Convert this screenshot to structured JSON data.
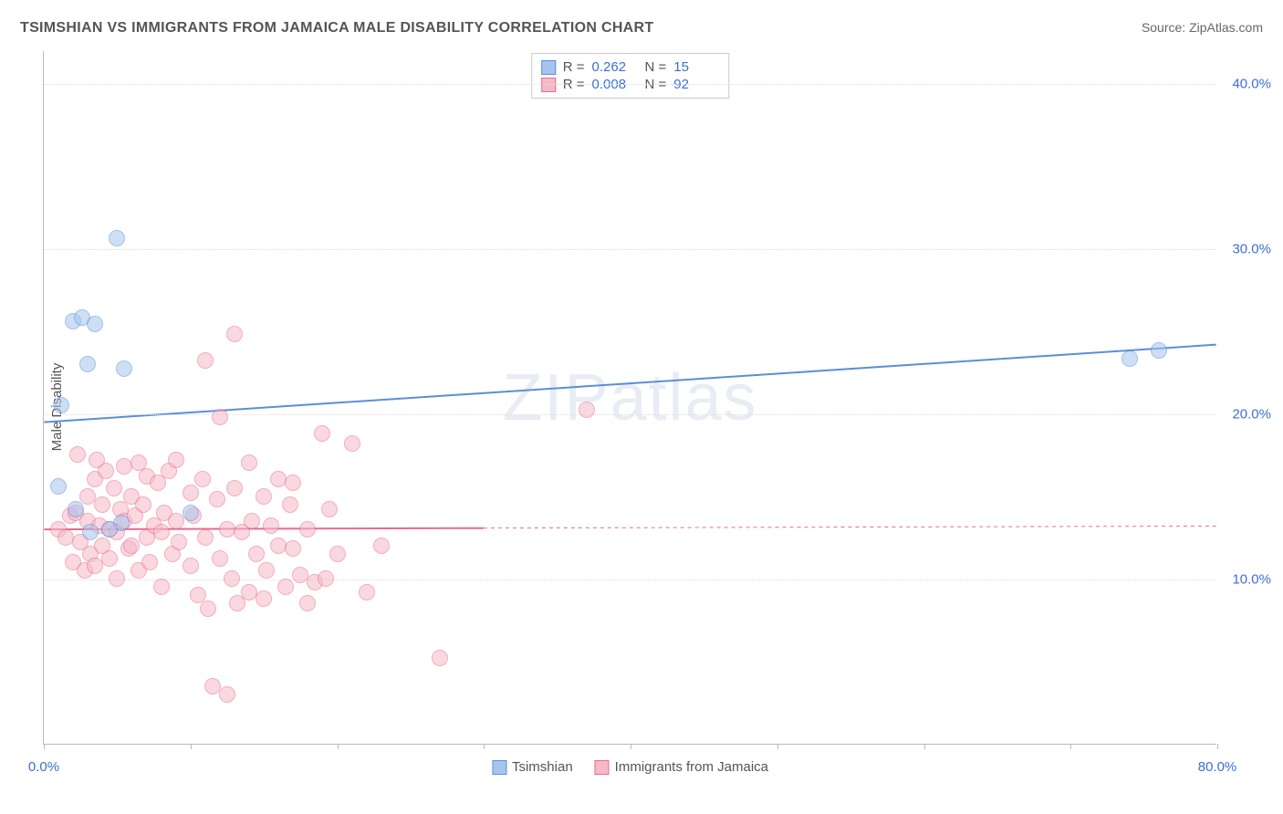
{
  "title": "TSIMSHIAN VS IMMIGRANTS FROM JAMAICA MALE DISABILITY CORRELATION CHART",
  "source": "Source: ZipAtlas.com",
  "ylabel": "Male Disability",
  "watermark": "ZIPatlas",
  "chart": {
    "type": "scatter",
    "background_color": "#ffffff",
    "grid_color": "#dddddd",
    "axis_color": "#bbbbbb",
    "text_color": "#555555",
    "value_color": "#3b6fd8",
    "xlim": [
      0,
      80
    ],
    "ylim": [
      0,
      42
    ],
    "xticks": [
      0,
      10,
      20,
      30,
      40,
      50,
      60,
      70,
      80
    ],
    "xtick_labels_shown": {
      "0": "0.0%",
      "80": "80.0%"
    },
    "yticks": [
      10,
      20,
      30,
      40
    ],
    "ytick_labels": {
      "10": "10.0%",
      "20": "20.0%",
      "30": "30.0%",
      "40": "40.0%"
    },
    "marker_radius": 9,
    "marker_stroke_width": 1.5,
    "trend_line_width": 2,
    "title_fontsize": 16,
    "label_fontsize": 15
  },
  "series": {
    "tsimshian": {
      "label": "Tsimshian",
      "fill": "#a7c4ec",
      "stroke": "#5a8fd8",
      "fill_opacity": 0.55,
      "legend": {
        "R": "0.262",
        "N": "15"
      },
      "trend": {
        "x1": 0,
        "y1": 19.5,
        "x2": 80,
        "y2": 24.2,
        "dash_from_x": null
      },
      "points": [
        [
          1.2,
          20.5
        ],
        [
          2.0,
          25.6
        ],
        [
          2.6,
          25.8
        ],
        [
          3.5,
          25.4
        ],
        [
          3.0,
          23.0
        ],
        [
          5.5,
          22.7
        ],
        [
          5.0,
          30.6
        ],
        [
          1.0,
          15.6
        ],
        [
          5.3,
          13.4
        ],
        [
          10.0,
          14.0
        ],
        [
          74.0,
          23.3
        ],
        [
          76.0,
          23.8
        ],
        [
          3.2,
          12.8
        ],
        [
          4.5,
          13.0
        ],
        [
          2.2,
          14.2
        ]
      ]
    },
    "jamaica": {
      "label": "Immigrants from Jamaica",
      "fill": "#f6b9c8",
      "stroke": "#e96b8f",
      "fill_opacity": 0.55,
      "legend": {
        "R": "0.008",
        "N": "92"
      },
      "trend": {
        "x1": 0,
        "y1": 13.0,
        "x2": 80,
        "y2": 13.2,
        "dash_from_x": 30
      },
      "points": [
        [
          1.0,
          13.0
        ],
        [
          1.5,
          12.5
        ],
        [
          1.8,
          13.8
        ],
        [
          2.0,
          11.0
        ],
        [
          2.2,
          14.0
        ],
        [
          2.5,
          12.2
        ],
        [
          2.8,
          10.5
        ],
        [
          3.0,
          13.5
        ],
        [
          3.0,
          15.0
        ],
        [
          3.2,
          11.5
        ],
        [
          3.5,
          16.0
        ],
        [
          3.5,
          10.8
        ],
        [
          3.8,
          13.2
        ],
        [
          4.0,
          12.0
        ],
        [
          4.0,
          14.5
        ],
        [
          4.2,
          16.5
        ],
        [
          4.5,
          11.2
        ],
        [
          4.5,
          13.0
        ],
        [
          4.8,
          15.5
        ],
        [
          5.0,
          12.8
        ],
        [
          5.0,
          10.0
        ],
        [
          5.2,
          14.2
        ],
        [
          5.5,
          16.8
        ],
        [
          5.5,
          13.5
        ],
        [
          5.8,
          11.8
        ],
        [
          6.0,
          15.0
        ],
        [
          6.0,
          12.0
        ],
        [
          6.2,
          13.8
        ],
        [
          6.5,
          17.0
        ],
        [
          6.5,
          10.5
        ],
        [
          6.8,
          14.5
        ],
        [
          7.0,
          12.5
        ],
        [
          7.0,
          16.2
        ],
        [
          7.2,
          11.0
        ],
        [
          7.5,
          13.2
        ],
        [
          7.8,
          15.8
        ],
        [
          8.0,
          12.8
        ],
        [
          8.0,
          9.5
        ],
        [
          8.2,
          14.0
        ],
        [
          8.5,
          16.5
        ],
        [
          8.8,
          11.5
        ],
        [
          9.0,
          13.5
        ],
        [
          9.0,
          17.2
        ],
        [
          9.2,
          12.2
        ],
        [
          10.0,
          15.2
        ],
        [
          10.0,
          10.8
        ],
        [
          10.2,
          13.8
        ],
        [
          10.5,
          9.0
        ],
        [
          10.8,
          16.0
        ],
        [
          11.0,
          12.5
        ],
        [
          11.0,
          23.2
        ],
        [
          11.2,
          8.2
        ],
        [
          11.5,
          3.5
        ],
        [
          11.8,
          14.8
        ],
        [
          12.0,
          11.2
        ],
        [
          12.0,
          19.8
        ],
        [
          12.5,
          13.0
        ],
        [
          12.5,
          3.0
        ],
        [
          12.8,
          10.0
        ],
        [
          13.0,
          15.5
        ],
        [
          13.0,
          24.8
        ],
        [
          13.2,
          8.5
        ],
        [
          13.5,
          12.8
        ],
        [
          14.0,
          17.0
        ],
        [
          14.0,
          9.2
        ],
        [
          14.2,
          13.5
        ],
        [
          14.5,
          11.5
        ],
        [
          15.0,
          8.8
        ],
        [
          15.0,
          15.0
        ],
        [
          15.2,
          10.5
        ],
        [
          15.5,
          13.2
        ],
        [
          16.0,
          12.0
        ],
        [
          16.0,
          16.0
        ],
        [
          16.5,
          9.5
        ],
        [
          16.8,
          14.5
        ],
        [
          17.0,
          11.8
        ],
        [
          17.0,
          15.8
        ],
        [
          17.5,
          10.2
        ],
        [
          18.0,
          13.0
        ],
        [
          18.0,
          8.5
        ],
        [
          18.5,
          9.8
        ],
        [
          19.0,
          18.8
        ],
        [
          19.2,
          10.0
        ],
        [
          19.5,
          14.2
        ],
        [
          20.0,
          11.5
        ],
        [
          21.0,
          18.2
        ],
        [
          22.0,
          9.2
        ],
        [
          23.0,
          12.0
        ],
        [
          27.0,
          5.2
        ],
        [
          37.0,
          20.2
        ],
        [
          2.3,
          17.5
        ],
        [
          3.6,
          17.2
        ]
      ]
    }
  }
}
